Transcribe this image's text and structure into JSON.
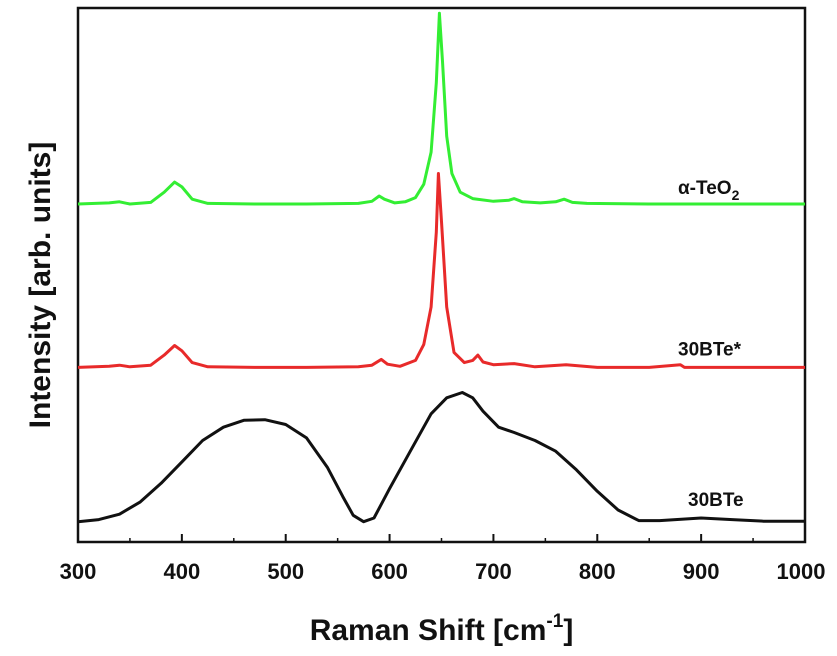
{
  "chart_data": {
    "type": "line",
    "xlabel": "Raman Shift [cm",
    "xlabel_sup": "-1",
    "xlabel_end": "]",
    "ylabel": "Intensity [arb. units]",
    "xlim": [
      300,
      1000
    ],
    "ylim": [
      0,
      1
    ],
    "x_ticks": [
      300,
      400,
      500,
      600,
      700,
      800,
      900,
      1000
    ],
    "y_ticks_shown": false,
    "grid": false,
    "legend": "labels beside curves",
    "series": [
      {
        "name": "α-TeO",
        "name_sub": "2",
        "color": "#33ee33",
        "points": [
          [
            300,
            0.633
          ],
          [
            330,
            0.635
          ],
          [
            340,
            0.637
          ],
          [
            350,
            0.633
          ],
          [
            370,
            0.636
          ],
          [
            383,
            0.655
          ],
          [
            393,
            0.674
          ],
          [
            400,
            0.665
          ],
          [
            410,
            0.642
          ],
          [
            425,
            0.634
          ],
          [
            470,
            0.633
          ],
          [
            520,
            0.633
          ],
          [
            570,
            0.634
          ],
          [
            583,
            0.638
          ],
          [
            590,
            0.648
          ],
          [
            595,
            0.642
          ],
          [
            605,
            0.635
          ],
          [
            615,
            0.637
          ],
          [
            625,
            0.645
          ],
          [
            633,
            0.67
          ],
          [
            640,
            0.73
          ],
          [
            645,
            0.86
          ],
          [
            648,
            0.99
          ],
          [
            651,
            0.9
          ],
          [
            655,
            0.76
          ],
          [
            660,
            0.69
          ],
          [
            668,
            0.655
          ],
          [
            680,
            0.643
          ],
          [
            700,
            0.638
          ],
          [
            715,
            0.64
          ],
          [
            720,
            0.643
          ],
          [
            728,
            0.637
          ],
          [
            745,
            0.635
          ],
          [
            760,
            0.637
          ],
          [
            768,
            0.642
          ],
          [
            776,
            0.636
          ],
          [
            790,
            0.634
          ],
          [
            850,
            0.633
          ],
          [
            1000,
            0.633
          ]
        ]
      },
      {
        "name": "30BTe*",
        "color": "#e82a2a",
        "points": [
          [
            300,
            0.327
          ],
          [
            330,
            0.329
          ],
          [
            340,
            0.331
          ],
          [
            350,
            0.328
          ],
          [
            370,
            0.331
          ],
          [
            383,
            0.35
          ],
          [
            393,
            0.368
          ],
          [
            400,
            0.358
          ],
          [
            410,
            0.336
          ],
          [
            425,
            0.328
          ],
          [
            470,
            0.327
          ],
          [
            520,
            0.327
          ],
          [
            570,
            0.328
          ],
          [
            583,
            0.331
          ],
          [
            592,
            0.342
          ],
          [
            598,
            0.333
          ],
          [
            610,
            0.329
          ],
          [
            625,
            0.34
          ],
          [
            633,
            0.37
          ],
          [
            640,
            0.44
          ],
          [
            645,
            0.58
          ],
          [
            647,
            0.69
          ],
          [
            650,
            0.6
          ],
          [
            655,
            0.44
          ],
          [
            662,
            0.355
          ],
          [
            672,
            0.336
          ],
          [
            680,
            0.34
          ],
          [
            685,
            0.35
          ],
          [
            690,
            0.337
          ],
          [
            700,
            0.332
          ],
          [
            720,
            0.334
          ],
          [
            740,
            0.328
          ],
          [
            770,
            0.332
          ],
          [
            800,
            0.327
          ],
          [
            850,
            0.327
          ],
          [
            880,
            0.332
          ],
          [
            884,
            0.327
          ],
          [
            1000,
            0.327
          ]
        ]
      },
      {
        "name": "30BTe",
        "color": "#111111",
        "points": [
          [
            300,
            0.038
          ],
          [
            320,
            0.042
          ],
          [
            340,
            0.052
          ],
          [
            360,
            0.075
          ],
          [
            380,
            0.11
          ],
          [
            400,
            0.15
          ],
          [
            420,
            0.19
          ],
          [
            440,
            0.215
          ],
          [
            460,
            0.228
          ],
          [
            480,
            0.229
          ],
          [
            500,
            0.22
          ],
          [
            520,
            0.195
          ],
          [
            540,
            0.14
          ],
          [
            555,
            0.085
          ],
          [
            565,
            0.05
          ],
          [
            575,
            0.038
          ],
          [
            585,
            0.045
          ],
          [
            600,
            0.1
          ],
          [
            620,
            0.17
          ],
          [
            640,
            0.24
          ],
          [
            655,
            0.27
          ],
          [
            670,
            0.28
          ],
          [
            680,
            0.27
          ],
          [
            690,
            0.245
          ],
          [
            705,
            0.215
          ],
          [
            720,
            0.205
          ],
          [
            740,
            0.19
          ],
          [
            760,
            0.17
          ],
          [
            780,
            0.135
          ],
          [
            800,
            0.095
          ],
          [
            820,
            0.06
          ],
          [
            840,
            0.04
          ],
          [
            860,
            0.04
          ],
          [
            900,
            0.045
          ],
          [
            930,
            0.042
          ],
          [
            960,
            0.039
          ],
          [
            1000,
            0.039
          ]
        ]
      }
    ]
  }
}
